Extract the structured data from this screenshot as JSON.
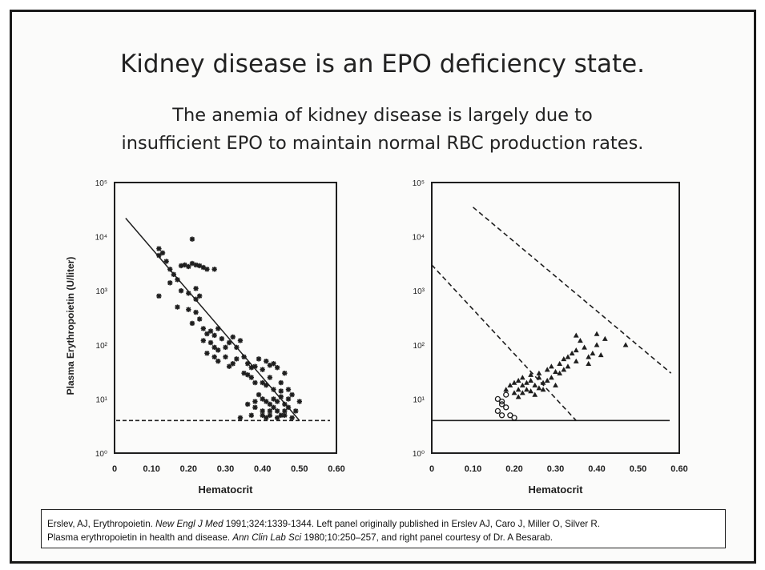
{
  "slide": {
    "title": "Kidney disease is an EPO deficiency state.",
    "subtitle_line1": "The anemia of kidney disease is largely due to",
    "subtitle_line2": "insufficient EPO to maintain normal RBC production rates."
  },
  "citation": {
    "l1_a": "Erslev, AJ, Erythropoietin. ",
    "l1_journal": "New Engl J Med",
    "l1_b": " 1991;324:1339-1344. Left panel originally published in Erslev AJ, Caro J, Miller O, Silver R.",
    "l2_a": "Plasma erythropoietin in health and disease. ",
    "l2_journal": "Ann Clin Lab Sci",
    "l2_b": " 1980;10:250–257, and right panel courtesy of Dr. A Besarab."
  },
  "colors": {
    "ink": "#1e1e1e",
    "frame": "#1a1a1a"
  },
  "chart_data": [
    {
      "type": "scatter",
      "panel": "left",
      "ylabel": "Plasma Erythropoietin (U/liter)",
      "xlabel": "Hematocrit",
      "x_ticks": [
        "0",
        "0.10",
        "0.20",
        "0.30",
        "0.40",
        "0.50",
        "0.60"
      ],
      "y_ticks": [
        "10⁰",
        "10¹",
        "10²",
        "10³",
        "10⁴",
        "10⁵"
      ],
      "xlim": [
        0,
        0.6
      ],
      "ylim": [
        1,
        100000
      ],
      "y_scale": "log",
      "regression_line": [
        [
          0.03,
          22000
        ],
        [
          0.5,
          4
        ]
      ],
      "baseline_dashed_y": 4,
      "points": [
        [
          0.12,
          6000
        ],
        [
          0.13,
          5000
        ],
        [
          0.12,
          4500
        ],
        [
          0.14,
          3500
        ],
        [
          0.15,
          2500
        ],
        [
          0.16,
          2000
        ],
        [
          0.17,
          1600
        ],
        [
          0.18,
          2900
        ],
        [
          0.19,
          3000
        ],
        [
          0.2,
          2800
        ],
        [
          0.21,
          3200
        ],
        [
          0.22,
          3000
        ],
        [
          0.23,
          2900
        ],
        [
          0.24,
          2700
        ],
        [
          0.25,
          2500
        ],
        [
          0.27,
          2500
        ],
        [
          0.21,
          9000
        ],
        [
          0.15,
          1400
        ],
        [
          0.18,
          1000
        ],
        [
          0.2,
          900
        ],
        [
          0.22,
          1100
        ],
        [
          0.23,
          800
        ],
        [
          0.22,
          700
        ],
        [
          0.12,
          800
        ],
        [
          0.17,
          500
        ],
        [
          0.2,
          450
        ],
        [
          0.22,
          400
        ],
        [
          0.21,
          250
        ],
        [
          0.23,
          300
        ],
        [
          0.24,
          200
        ],
        [
          0.25,
          160
        ],
        [
          0.26,
          180
        ],
        [
          0.27,
          150
        ],
        [
          0.28,
          200
        ],
        [
          0.24,
          120
        ],
        [
          0.26,
          110
        ],
        [
          0.27,
          90
        ],
        [
          0.28,
          80
        ],
        [
          0.29,
          130
        ],
        [
          0.3,
          90
        ],
        [
          0.31,
          110
        ],
        [
          0.32,
          140
        ],
        [
          0.33,
          90
        ],
        [
          0.34,
          120
        ],
        [
          0.25,
          70
        ],
        [
          0.27,
          60
        ],
        [
          0.28,
          50
        ],
        [
          0.3,
          60
        ],
        [
          0.31,
          40
        ],
        [
          0.32,
          45
        ],
        [
          0.33,
          55
        ],
        [
          0.35,
          60
        ],
        [
          0.36,
          45
        ],
        [
          0.37,
          38
        ],
        [
          0.38,
          40
        ],
        [
          0.39,
          55
        ],
        [
          0.4,
          35
        ],
        [
          0.41,
          50
        ],
        [
          0.42,
          42
        ],
        [
          0.43,
          45
        ],
        [
          0.44,
          38
        ],
        [
          0.35,
          30
        ],
        [
          0.36,
          28
        ],
        [
          0.37,
          25
        ],
        [
          0.38,
          20
        ],
        [
          0.4,
          20
        ],
        [
          0.41,
          18
        ],
        [
          0.42,
          25
        ],
        [
          0.43,
          15
        ],
        [
          0.45,
          20
        ],
        [
          0.46,
          30
        ],
        [
          0.39,
          12
        ],
        [
          0.4,
          10
        ],
        [
          0.41,
          9
        ],
        [
          0.42,
          8
        ],
        [
          0.43,
          10
        ],
        [
          0.44,
          9
        ],
        [
          0.45,
          11
        ],
        [
          0.46,
          8
        ],
        [
          0.47,
          10
        ],
        [
          0.48,
          12
        ],
        [
          0.38,
          7
        ],
        [
          0.4,
          6
        ],
        [
          0.42,
          6
        ],
        [
          0.43,
          7
        ],
        [
          0.44,
          6
        ],
        [
          0.45,
          5
        ],
        [
          0.46,
          6
        ],
        [
          0.47,
          7
        ],
        [
          0.5,
          9
        ],
        [
          0.49,
          6
        ],
        [
          0.4,
          5
        ],
        [
          0.41,
          4.5
        ],
        [
          0.42,
          5
        ],
        [
          0.44,
          4.5
        ],
        [
          0.46,
          5
        ],
        [
          0.48,
          4.5
        ],
        [
          0.34,
          4.5
        ],
        [
          0.37,
          5
        ],
        [
          0.45,
          14
        ],
        [
          0.47,
          15
        ],
        [
          0.36,
          8
        ],
        [
          0.38,
          9
        ]
      ]
    },
    {
      "type": "scatter",
      "panel": "right",
      "xlabel": "Hematocrit",
      "x_ticks": [
        "0",
        "0.10",
        "0.20",
        "0.30",
        "0.40",
        "0.50",
        "0.60"
      ],
      "y_ticks": [
        "10⁰",
        "10¹",
        "10²",
        "10³",
        "10⁴",
        "10⁵"
      ],
      "xlim": [
        0,
        0.6
      ],
      "ylim": [
        1,
        100000
      ],
      "y_scale": "log",
      "dashed_upper": [
        [
          0.1,
          35000
        ],
        [
          0.58,
          30
        ]
      ],
      "dashed_lower": [
        [
          0.0,
          3000
        ],
        [
          0.35,
          4
        ]
      ],
      "baseline_solid_y": 4,
      "open_points": [
        [
          0.16,
          10
        ],
        [
          0.17,
          8
        ],
        [
          0.16,
          6
        ],
        [
          0.17,
          5
        ],
        [
          0.18,
          7
        ],
        [
          0.19,
          5
        ],
        [
          0.2,
          4.5
        ],
        [
          0.17,
          9
        ],
        [
          0.18,
          12
        ]
      ],
      "filled_points": [
        [
          0.18,
          15
        ],
        [
          0.19,
          18
        ],
        [
          0.2,
          20
        ],
        [
          0.21,
          22
        ],
        [
          0.22,
          18
        ],
        [
          0.2,
          13
        ],
        [
          0.21,
          15
        ],
        [
          0.22,
          25
        ],
        [
          0.23,
          20
        ],
        [
          0.24,
          22
        ],
        [
          0.25,
          18
        ],
        [
          0.23,
          15
        ],
        [
          0.24,
          28
        ],
        [
          0.26,
          25
        ],
        [
          0.26,
          30
        ],
        [
          0.27,
          20
        ],
        [
          0.28,
          35
        ],
        [
          0.29,
          40
        ],
        [
          0.3,
          32
        ],
        [
          0.29,
          25
        ],
        [
          0.31,
          45
        ],
        [
          0.32,
          55
        ],
        [
          0.33,
          60
        ],
        [
          0.31,
          30
        ],
        [
          0.34,
          70
        ],
        [
          0.35,
          80
        ],
        [
          0.33,
          40
        ],
        [
          0.36,
          120
        ],
        [
          0.37,
          90
        ],
        [
          0.38,
          60
        ],
        [
          0.39,
          70
        ],
        [
          0.4,
          100
        ],
        [
          0.41,
          65
        ],
        [
          0.35,
          150
        ],
        [
          0.4,
          160
        ],
        [
          0.42,
          130
        ],
        [
          0.47,
          100
        ],
        [
          0.27,
          15
        ],
        [
          0.25,
          12
        ],
        [
          0.3,
          18
        ],
        [
          0.28,
          22
        ],
        [
          0.22,
          13
        ],
        [
          0.24,
          14
        ],
        [
          0.26,
          16
        ],
        [
          0.21,
          11
        ],
        [
          0.32,
          35
        ],
        [
          0.35,
          50
        ],
        [
          0.38,
          45
        ]
      ]
    }
  ]
}
